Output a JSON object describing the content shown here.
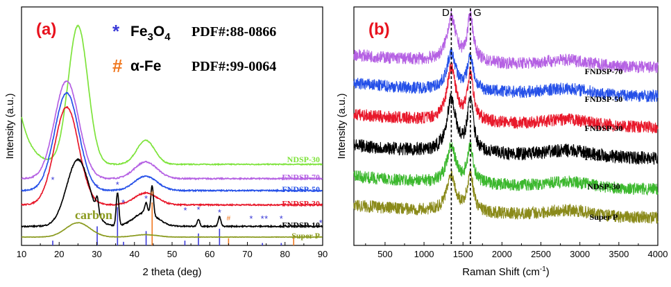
{
  "chart_data": [
    {
      "type": "line",
      "panel_label": "(a)",
      "xlabel": "2 theta (deg)",
      "ylabel": "Intensity (a.u.)",
      "xlim": [
        10,
        90
      ],
      "ylim": [
        0,
        100
      ],
      "xticks": [
        "10",
        "20",
        "30",
        "40",
        "50",
        "60",
        "70",
        "80",
        "90"
      ],
      "legend": [
        {
          "symbol": "*",
          "text": "Fe3O4",
          "pdf": "PDF#:88-0866",
          "color": "#3a3ad8"
        },
        {
          "symbol": "#",
          "text": "α-Fe",
          "pdf": "PDF#:99-0064",
          "color": "#f07820"
        }
      ],
      "series": [
        {
          "name": "NDSP-30",
          "color": "#7de33a",
          "baseline": 34,
          "peak1": {
            "pos": 25,
            "height": 58,
            "width": 2.6
          },
          "peak2": {
            "pos": 43,
            "height": 10,
            "width": 2.4
          },
          "decay": 40,
          "noise": 0.4
        },
        {
          "name": "FNDSP-70",
          "color": "#b561e3",
          "baseline": 28,
          "peak1": {
            "pos": 22,
            "height": 41,
            "width": 3.2
          },
          "peak2": {
            "pos": 43,
            "height": 7,
            "width": 3
          },
          "decay": 0,
          "noise": 0.5
        },
        {
          "name": "FNDSP-50",
          "color": "#2550e8",
          "baseline": 23,
          "peak1": {
            "pos": 22,
            "height": 41,
            "width": 3.2
          },
          "peak2": {
            "pos": 43,
            "height": 6,
            "width": 3
          },
          "decay": 0,
          "noise": 0.5
        },
        {
          "name": "FNDSP-30",
          "color": "#e8182a",
          "baseline": 17,
          "peak1": {
            "pos": 22,
            "height": 41,
            "width": 3.2
          },
          "peak2": {
            "pos": 43,
            "height": 5,
            "width": 3
          },
          "decay": 0,
          "noise": 0.5
        },
        {
          "name": "FNDSP-10",
          "color": "#000000",
          "baseline": 8,
          "peak1": {
            "pos": 25,
            "height": 28,
            "width": 3.0
          },
          "peak2": {
            "pos": 43,
            "height": 6,
            "width": 3
          },
          "decay": 0,
          "noise": 0.5,
          "sharp_peaks": [
            30.1,
            35.5,
            43.1,
            44.7,
            57.0,
            62.6
          ]
        },
        {
          "name": "Super P",
          "color": "#8a9a1e",
          "baseline": 3.5,
          "peak1": {
            "pos": 25,
            "height": 6,
            "width": 3.2
          },
          "peak2": {
            "pos": 43,
            "height": 1,
            "width": 3
          },
          "decay": 0,
          "noise": 0.15
        }
      ],
      "carbon_label": "carbon",
      "star_positions": [
        18.3,
        30.1,
        35.5,
        37.0,
        43.1,
        53.5,
        57.0,
        62.6,
        71.0,
        74.0,
        75.0,
        79.0,
        89.5
      ],
      "hash_positions": [
        44.7,
        65.0
      ],
      "reference_lines_fe3o4": [
        {
          "pos": 18.3,
          "h": 2
        },
        {
          "pos": 30.1,
          "h": 8
        },
        {
          "pos": 35.5,
          "h": 16
        },
        {
          "pos": 37.1,
          "h": 1.5
        },
        {
          "pos": 43.1,
          "h": 6
        },
        {
          "pos": 53.4,
          "h": 2
        },
        {
          "pos": 57.0,
          "h": 5
        },
        {
          "pos": 62.6,
          "h": 7
        },
        {
          "pos": 74.0,
          "h": 1
        },
        {
          "pos": 79.0,
          "h": 1
        }
      ],
      "reference_lines_fe": [
        {
          "pos": 44.7,
          "h": 18
        },
        {
          "pos": 65.0,
          "h": 3
        },
        {
          "pos": 82.3,
          "h": 4
        }
      ]
    },
    {
      "type": "line",
      "panel_label": "(b)",
      "xlabel": "Raman Shift (cm",
      "xlabel_sup": "-1",
      "xlabel_end": ")",
      "ylabel": "Intensity (a.u.)",
      "xlim": [
        100,
        4000
      ],
      "ylim": [
        0,
        100
      ],
      "xticks": [
        "500",
        "1000",
        "1500",
        "2000",
        "2500",
        "3000",
        "3500",
        "4000"
      ],
      "dashed_lines": [
        {
          "pos": 1350,
          "label": "D"
        },
        {
          "pos": 1595,
          "label": "G"
        }
      ],
      "series": [
        {
          "name": "FNDSP-70",
          "color": "#b561e3",
          "baseline": 76,
          "d": 18,
          "g": 19,
          "noise": 2.6
        },
        {
          "name": "FNDSP-50",
          "color": "#2550e8",
          "baseline": 64,
          "d": 15,
          "g": 14,
          "noise": 2.6
        },
        {
          "name": "FNDSP-30",
          "color": "#e8182a",
          "baseline": 51,
          "d": 22,
          "g": 20,
          "noise": 2.6
        },
        {
          "name": "FNDSP-10",
          "color": "#000000",
          "baseline": 38,
          "d": 22,
          "g": 22,
          "noise": 2.8
        },
        {
          "name": "NDSP-30",
          "color": "#3cb82e",
          "baseline": 25,
          "d": 15,
          "g": 15,
          "noise": 2.6
        },
        {
          "name": "Super P",
          "color": "#8a8a1a",
          "baseline": 13,
          "d": 15,
          "g": 16,
          "noise": 2.6
        }
      ]
    }
  ]
}
